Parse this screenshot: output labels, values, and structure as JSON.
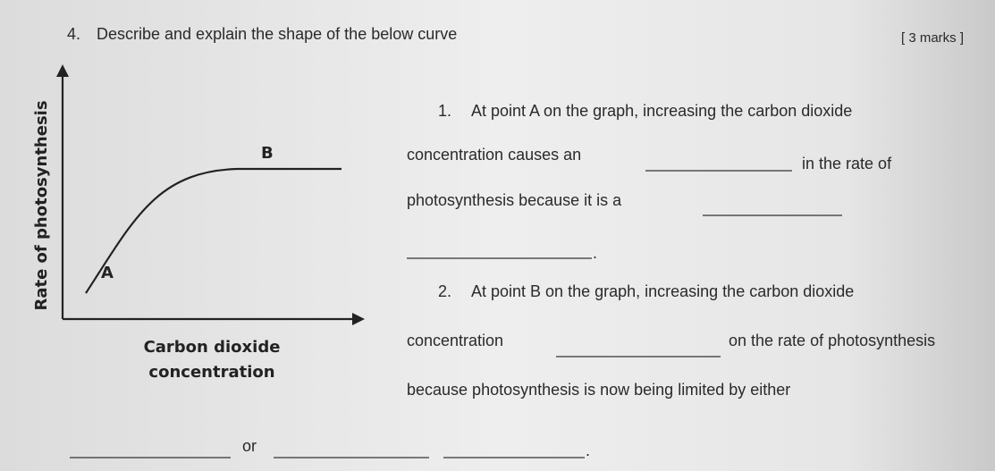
{
  "question": {
    "number": "4.",
    "text": "Describe and explain the shape of the below curve",
    "marks": "[ 3 marks ]"
  },
  "graph": {
    "y_axis_label": "Rate of photosynthesis",
    "x_axis_label": [
      "Carbon dioxide",
      "concentration"
    ],
    "points": [
      "A",
      "B"
    ]
  },
  "items": [
    {
      "number": "1.",
      "parts": [
        "At point A on the graph, increasing the carbon dioxide",
        "concentration causes an",
        "in the rate of",
        "photosynthesis because it is a",
        "."
      ]
    },
    {
      "number": "2.",
      "parts": [
        "At point B on the graph, increasing the carbon dioxide",
        "concentration",
        "on the rate of photosynthesis",
        "because photosynthesis is now being limited by either",
        "or",
        "."
      ]
    }
  ]
}
